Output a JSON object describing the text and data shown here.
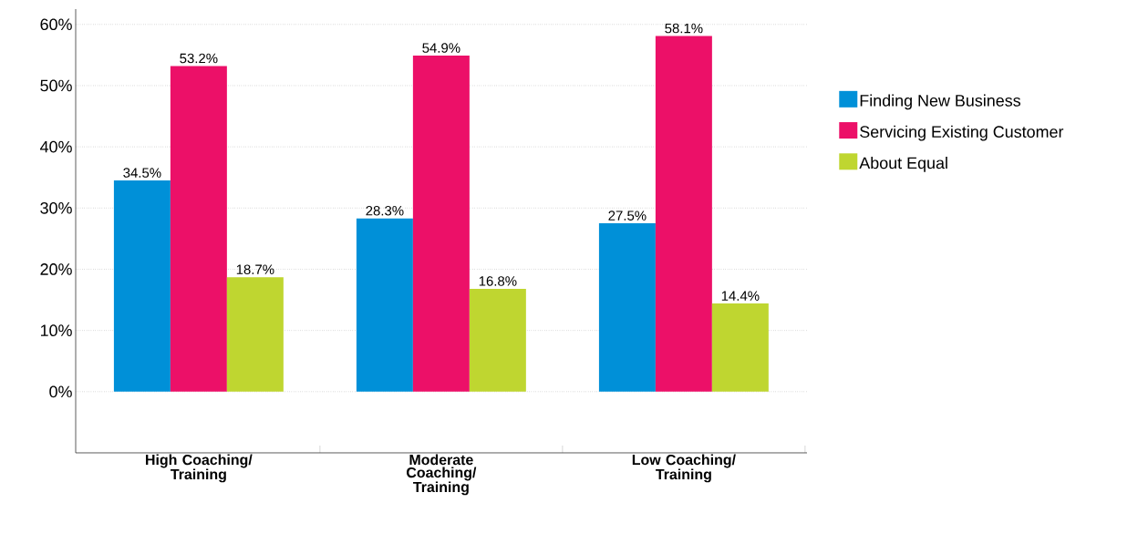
{
  "chart_data": {
    "type": "bar",
    "categories": [
      "High Coaching/ Training",
      "Moderate Coaching/ Training",
      "Low Coaching/ Training"
    ],
    "series": [
      {
        "name": "Finding New Business",
        "color": "#0090d8",
        "values": [
          34.5,
          28.3,
          27.5
        ],
        "value_labels": [
          "34.5%",
          "28.3%",
          "27.5%"
        ]
      },
      {
        "name": "Servicing Existing Customer",
        "color": "#ec1068",
        "values": [
          53.2,
          54.9,
          58.1
        ],
        "value_labels": [
          "53.2%",
          "54.9%",
          "58.1%"
        ]
      },
      {
        "name": "About Equal",
        "color": "#bfd630",
        "values": [
          18.7,
          16.8,
          14.4
        ],
        "value_labels": [
          "18.7%",
          "16.8%",
          "14.4%"
        ]
      }
    ],
    "ylim": [
      -10,
      62.5
    ],
    "yticks": [
      {
        "value": 0,
        "label": "0%"
      },
      {
        "value": 10,
        "label": "10%"
      },
      {
        "value": 20,
        "label": "20%"
      },
      {
        "value": 30,
        "label": "30%"
      },
      {
        "value": 40,
        "label": "40%"
      },
      {
        "value": 50,
        "label": "50%"
      },
      {
        "value": 60,
        "label": "60%"
      }
    ],
    "grid": "y",
    "legend": "right"
  }
}
